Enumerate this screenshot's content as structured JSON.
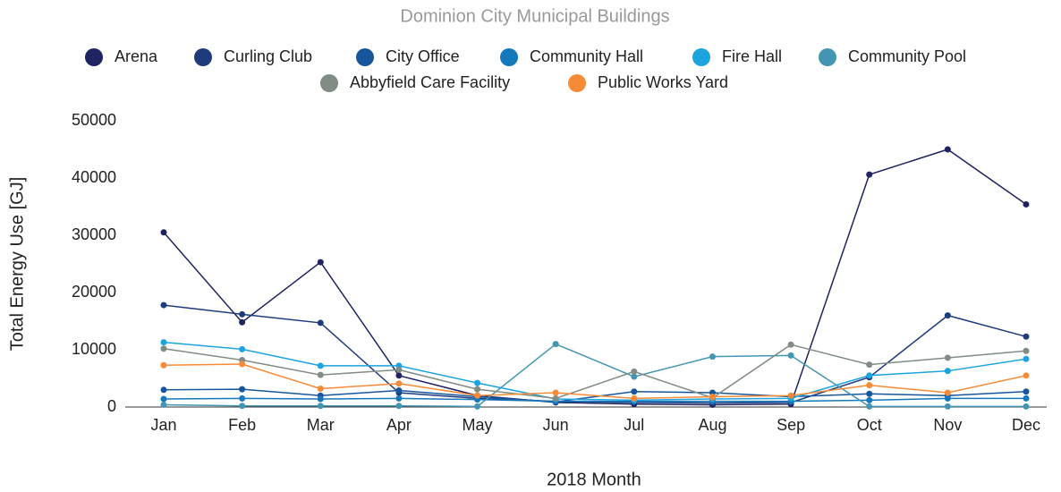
{
  "chart_data": {
    "type": "line",
    "title": "Dominion City Municipal Buildings",
    "x_label": "2018 Month",
    "y_label": "Total Energy Use [GJ]",
    "categories": [
      "Jan",
      "Feb",
      "Mar",
      "Apr",
      "May",
      "Jun",
      "Jul",
      "Aug",
      "Sep",
      "Oct",
      "Nov",
      "Dec"
    ],
    "ylim": [
      0,
      50000
    ],
    "yticks": [
      0,
      10000,
      20000,
      30000,
      40000,
      50000
    ],
    "grid": false,
    "legend": "top",
    "series": [
      {
        "name": "Arena",
        "color": "#1f2362",
        "values": [
          30500,
          14800,
          25300,
          5500,
          2000,
          800,
          500,
          400,
          500,
          40600,
          45000,
          35400
        ]
      },
      {
        "name": "Curling Club",
        "color": "#1e3c7c",
        "values": [
          17800,
          16200,
          14700,
          2500,
          1500,
          1000,
          800,
          700,
          800,
          5200,
          16000,
          12300
        ]
      },
      {
        "name": "City Office",
        "color": "#18569c",
        "values": [
          3000,
          3100,
          2000,
          2900,
          1800,
          900,
          2700,
          2500,
          1800,
          2300,
          2000,
          2700
        ]
      },
      {
        "name": "Community Hall",
        "color": "#1478bd",
        "values": [
          1400,
          1500,
          1400,
          1500,
          1300,
          1000,
          1000,
          1000,
          1000,
          1200,
          1500,
          1500
        ]
      },
      {
        "name": "Fire Hall",
        "color": "#1ca3e0",
        "values": [
          11300,
          10100,
          7200,
          7200,
          4200,
          1400,
          1200,
          1400,
          1500,
          5500,
          6300,
          8400
        ]
      },
      {
        "name": "Community Pool",
        "color": "#4396b2",
        "values": [
          400,
          200,
          200,
          200,
          100,
          11000,
          5300,
          8800,
          9000,
          100,
          100,
          100
        ]
      },
      {
        "name": "Abbyfield Care Facility",
        "color": "#818c84",
        "values": [
          10200,
          8200,
          5600,
          6500,
          3100,
          1500,
          6200,
          1600,
          10900,
          7400,
          8600,
          9800
        ]
      },
      {
        "name": "Public Works Yard",
        "color": "#f68b37",
        "values": [
          7300,
          7500,
          3200,
          4100,
          2000,
          2500,
          1500,
          1800,
          2000,
          3800,
          2500,
          5500
        ]
      }
    ]
  }
}
